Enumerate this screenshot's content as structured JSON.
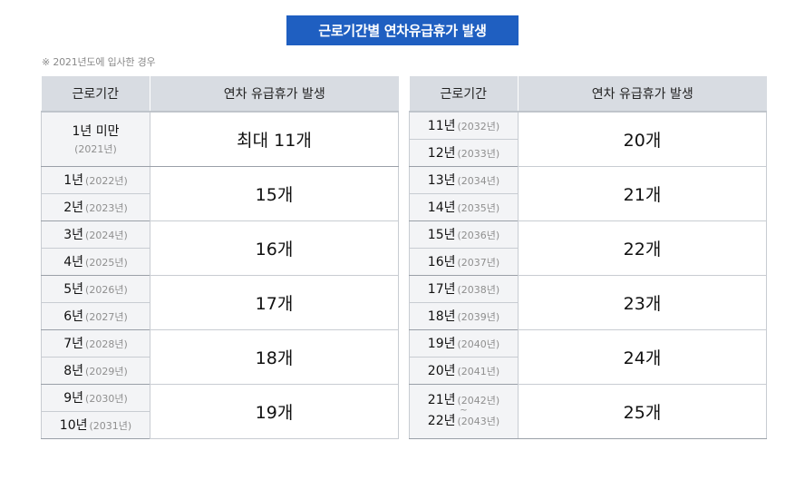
{
  "title": "근로기간별 연차유급휴가 발생",
  "note": "※ 2021년도에 입사한 경우",
  "headers": {
    "period": "근로기간",
    "leave": "연차 유급휴가 발생"
  },
  "left_table": {
    "first": {
      "period": "1년 미만",
      "year": "(2021년)",
      "leave": "최대 11개"
    },
    "groups": [
      {
        "rows": [
          {
            "period": "1년",
            "year": "(2022년)"
          },
          {
            "period": "2년",
            "year": "(2023년)"
          }
        ],
        "leave": "15개"
      },
      {
        "rows": [
          {
            "period": "3년",
            "year": "(2024년)"
          },
          {
            "period": "4년",
            "year": "(2025년)"
          }
        ],
        "leave": "16개"
      },
      {
        "rows": [
          {
            "period": "5년",
            "year": "(2026년)"
          },
          {
            "period": "6년",
            "year": "(2027년)"
          }
        ],
        "leave": "17개"
      },
      {
        "rows": [
          {
            "period": "7년",
            "year": "(2028년)"
          },
          {
            "period": "8년",
            "year": "(2029년)"
          }
        ],
        "leave": "18개"
      },
      {
        "rows": [
          {
            "period": "9년",
            "year": "(2030년)"
          },
          {
            "period": "10년",
            "year": "(2031년)"
          }
        ],
        "leave": "19개"
      }
    ]
  },
  "right_table": {
    "groups": [
      {
        "rows": [
          {
            "period": "11년",
            "year": "(2032년)"
          },
          {
            "period": "12년",
            "year": "(2033년)"
          }
        ],
        "leave": "20개"
      },
      {
        "rows": [
          {
            "period": "13년",
            "year": "(2034년)"
          },
          {
            "period": "14년",
            "year": "(2035년)"
          }
        ],
        "leave": "21개"
      },
      {
        "rows": [
          {
            "period": "15년",
            "year": "(2036년)"
          },
          {
            "period": "16년",
            "year": "(2037년)"
          }
        ],
        "leave": "22개"
      },
      {
        "rows": [
          {
            "period": "17년",
            "year": "(2038년)"
          },
          {
            "period": "18년",
            "year": "(2039년)"
          }
        ],
        "leave": "23개"
      },
      {
        "rows": [
          {
            "period": "19년",
            "year": "(2040년)"
          },
          {
            "period": "20년",
            "year": "(2041년)"
          }
        ],
        "leave": "24개"
      }
    ],
    "last": {
      "start": {
        "period": "21년",
        "year": "(2042년)"
      },
      "separator": "~",
      "end": {
        "period": "22년",
        "year": "(2043년)"
      },
      "leave": "25개"
    }
  }
}
